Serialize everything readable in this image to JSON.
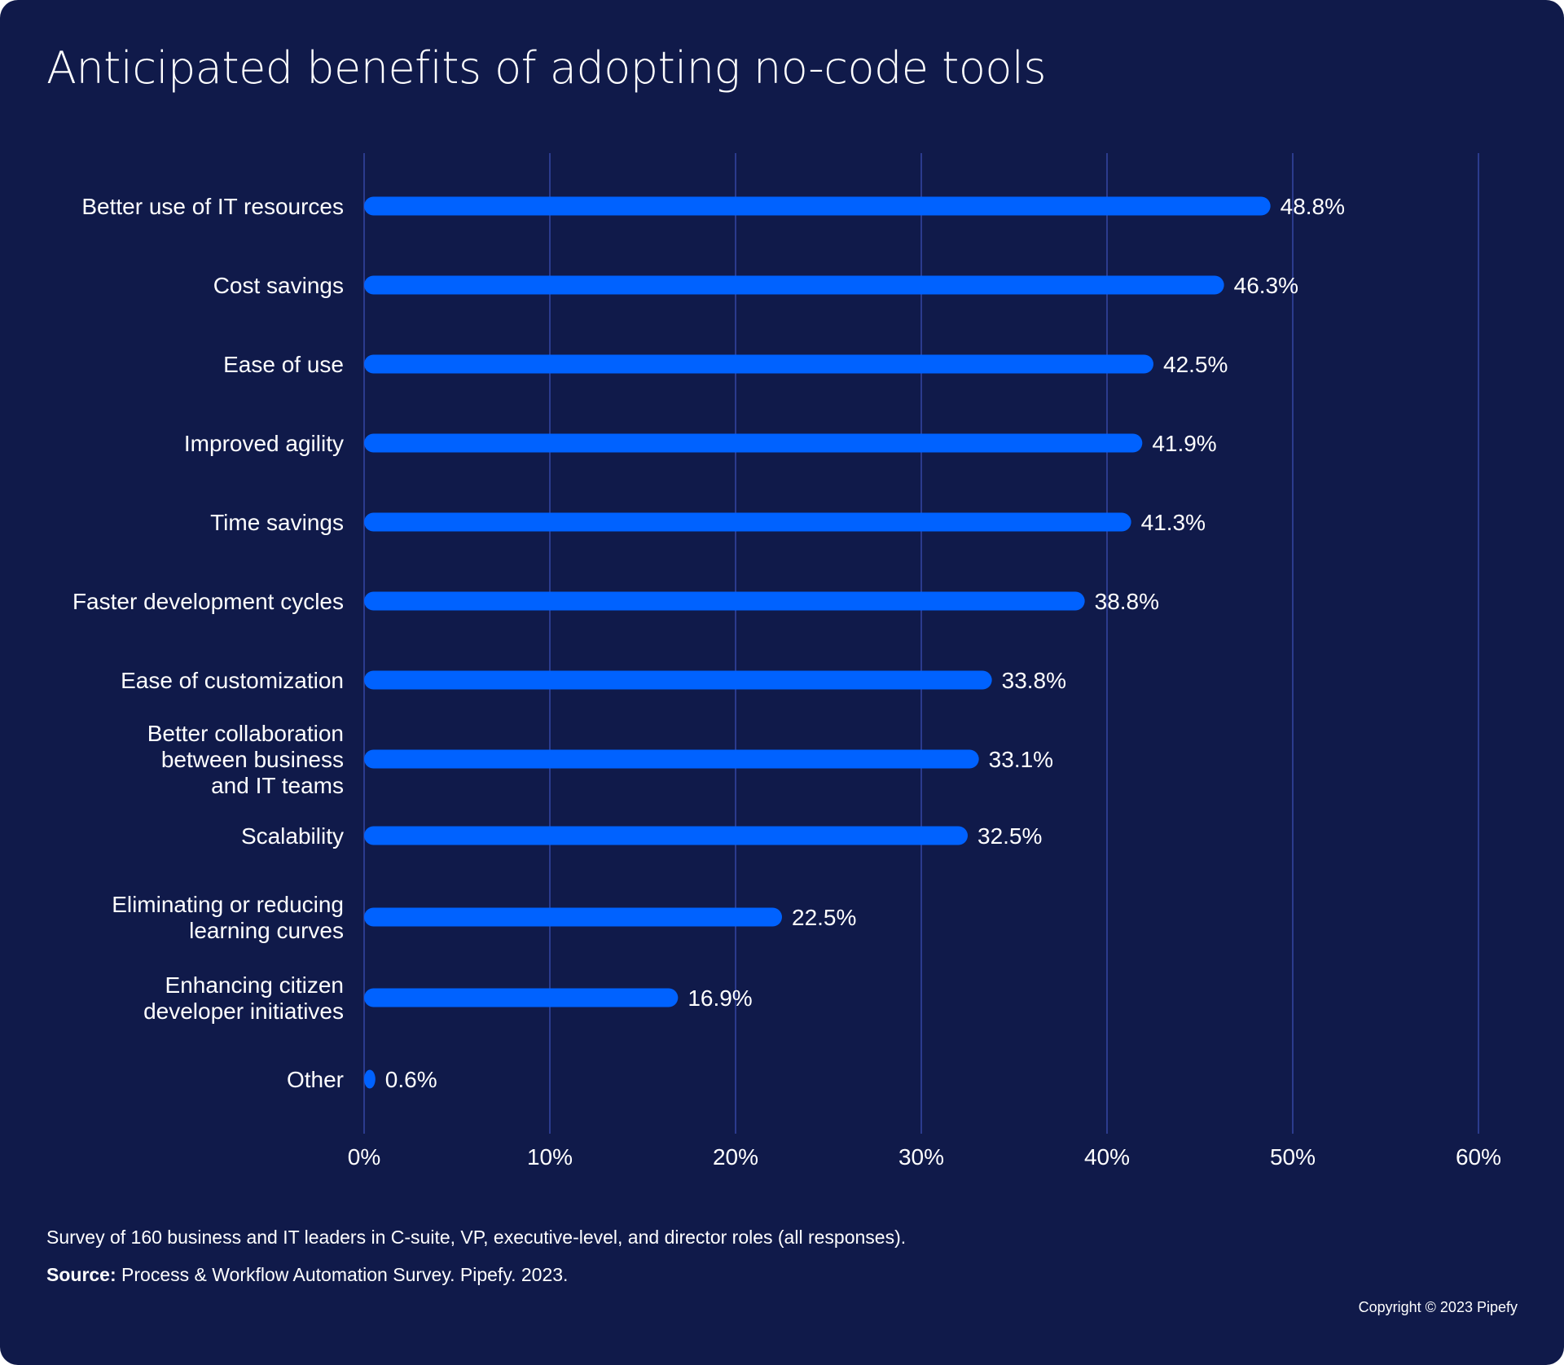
{
  "colors": {
    "background": "#101a4a",
    "bar": "#0062ff",
    "grid": "#3446a3",
    "text": "#ffffff"
  },
  "chart_data": {
    "type": "bar",
    "orientation": "horizontal",
    "title": "Anticipated benefits of adopting no-code tools",
    "categories": [
      [
        "Better use of IT resources"
      ],
      [
        "Cost savings"
      ],
      [
        "Ease of use"
      ],
      [
        "Improved agility"
      ],
      [
        "Time savings"
      ],
      [
        "Faster development cycles"
      ],
      [
        "Ease of customization"
      ],
      [
        "Better collaboration",
        "between business",
        "and IT teams"
      ],
      [
        "Scalability"
      ],
      [
        "Eliminating or reducing",
        "learning curves"
      ],
      [
        "Enhancing citizen",
        "developer initiatives"
      ],
      [
        "Other"
      ]
    ],
    "values": [
      48.8,
      46.3,
      42.5,
      41.9,
      41.3,
      38.8,
      33.8,
      33.1,
      32.5,
      22.5,
      16.9,
      0.6
    ],
    "value_labels": [
      "48.8%",
      "46.3%",
      "42.5%",
      "41.9%",
      "41.3%",
      "38.8%",
      "33.8%",
      "33.1%",
      "32.5%",
      "22.5%",
      "16.9%",
      "0.6%"
    ],
    "xlim": [
      0,
      60
    ],
    "x_ticks": [
      0,
      10,
      20,
      30,
      40,
      50,
      60
    ],
    "x_tick_labels": [
      "0%",
      "10%",
      "20%",
      "30%",
      "40%",
      "50%",
      "60%"
    ],
    "grid": true,
    "xlabel": "",
    "ylabel": ""
  },
  "footer": {
    "note": "Survey of 160 business and IT leaders in C-suite, VP, executive-level, and director roles (all responses).",
    "source_label": "Source:",
    "source_text": " Process & Workflow Automation Survey. Pipefy. 2023.",
    "copyright": "Copyright © 2023 Pipefy"
  }
}
